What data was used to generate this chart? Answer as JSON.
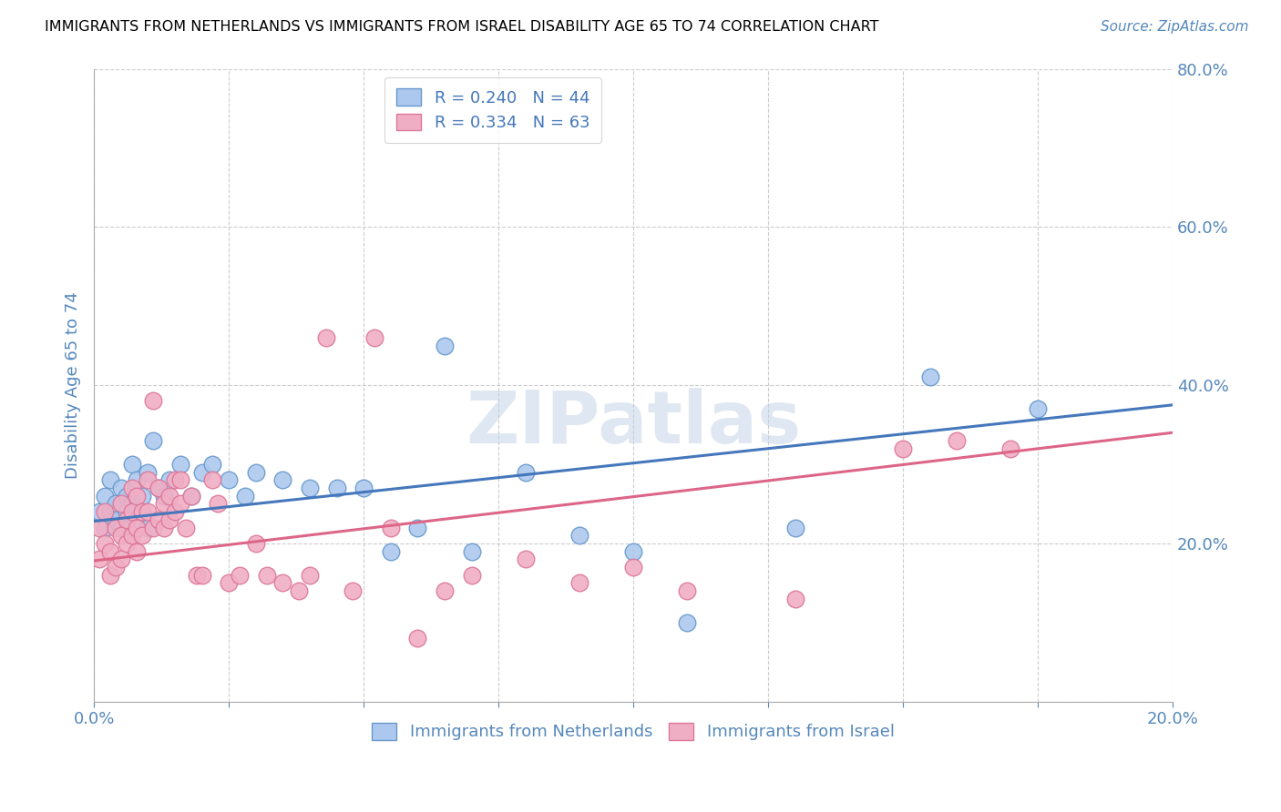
{
  "title": "IMMIGRANTS FROM NETHERLANDS VS IMMIGRANTS FROM ISRAEL DISABILITY AGE 65 TO 74 CORRELATION CHART",
  "source": "Source: ZipAtlas.com",
  "ylabel": "Disability Age 65 to 74",
  "xlim": [
    0.0,
    0.2
  ],
  "ylim": [
    0.0,
    0.8
  ],
  "xticks": [
    0.0,
    0.025,
    0.05,
    0.075,
    0.1,
    0.125,
    0.15,
    0.175,
    0.2
  ],
  "yticks": [
    0.0,
    0.2,
    0.4,
    0.6,
    0.8
  ],
  "xtick_labels": [
    "0.0%",
    "",
    "",
    "",
    "",
    "",
    "",
    "",
    "20.0%"
  ],
  "ytick_labels": [
    "",
    "20.0%",
    "40.0%",
    "60.0%",
    "80.0%"
  ],
  "netherlands_color": "#adc8ee",
  "israel_color": "#f0aec4",
  "netherlands_edge": "#6699cc",
  "israel_edge": "#dd7799",
  "trend_netherlands_color": "#4477bb",
  "trend_israel_color": "#dd6688",
  "legend_netherlands": "R = 0.240   N = 44",
  "legend_israel": "R = 0.334   N = 63",
  "watermark": "ZIPatlas",
  "netherlands_x": [
    0.001,
    0.002,
    0.002,
    0.003,
    0.003,
    0.004,
    0.004,
    0.005,
    0.005,
    0.006,
    0.006,
    0.007,
    0.007,
    0.008,
    0.008,
    0.009,
    0.01,
    0.01,
    0.011,
    0.012,
    0.013,
    0.014,
    0.016,
    0.018,
    0.02,
    0.022,
    0.025,
    0.028,
    0.03,
    0.035,
    0.04,
    0.045,
    0.05,
    0.055,
    0.06,
    0.065,
    0.07,
    0.08,
    0.09,
    0.1,
    0.11,
    0.13,
    0.155,
    0.175
  ],
  "netherlands_y": [
    0.24,
    0.26,
    0.22,
    0.28,
    0.24,
    0.25,
    0.23,
    0.27,
    0.22,
    0.26,
    0.24,
    0.3,
    0.25,
    0.28,
    0.23,
    0.26,
    0.29,
    0.22,
    0.33,
    0.27,
    0.26,
    0.28,
    0.3,
    0.26,
    0.29,
    0.3,
    0.28,
    0.26,
    0.29,
    0.28,
    0.27,
    0.27,
    0.27,
    0.19,
    0.22,
    0.45,
    0.19,
    0.29,
    0.21,
    0.19,
    0.1,
    0.22,
    0.41,
    0.37
  ],
  "israel_x": [
    0.001,
    0.001,
    0.002,
    0.002,
    0.003,
    0.003,
    0.004,
    0.004,
    0.005,
    0.005,
    0.005,
    0.006,
    0.006,
    0.007,
    0.007,
    0.007,
    0.008,
    0.008,
    0.008,
    0.009,
    0.009,
    0.01,
    0.01,
    0.011,
    0.011,
    0.012,
    0.012,
    0.013,
    0.013,
    0.014,
    0.014,
    0.015,
    0.015,
    0.016,
    0.016,
    0.017,
    0.018,
    0.019,
    0.02,
    0.022,
    0.023,
    0.025,
    0.027,
    0.03,
    0.032,
    0.035,
    0.038,
    0.04,
    0.043,
    0.048,
    0.052,
    0.055,
    0.06,
    0.065,
    0.07,
    0.08,
    0.09,
    0.1,
    0.11,
    0.13,
    0.15,
    0.16,
    0.17
  ],
  "israel_y": [
    0.22,
    0.18,
    0.24,
    0.2,
    0.19,
    0.16,
    0.22,
    0.17,
    0.25,
    0.21,
    0.18,
    0.23,
    0.2,
    0.27,
    0.24,
    0.21,
    0.26,
    0.22,
    0.19,
    0.24,
    0.21,
    0.28,
    0.24,
    0.38,
    0.22,
    0.27,
    0.23,
    0.25,
    0.22,
    0.26,
    0.23,
    0.28,
    0.24,
    0.28,
    0.25,
    0.22,
    0.26,
    0.16,
    0.16,
    0.28,
    0.25,
    0.15,
    0.16,
    0.2,
    0.16,
    0.15,
    0.14,
    0.16,
    0.46,
    0.14,
    0.46,
    0.22,
    0.08,
    0.14,
    0.16,
    0.18,
    0.15,
    0.17,
    0.14,
    0.13,
    0.32,
    0.33,
    0.32
  ],
  "nl_trend_x": [
    0.0,
    0.2
  ],
  "nl_trend_y": [
    0.228,
    0.375
  ],
  "il_trend_x": [
    0.0,
    0.2
  ],
  "il_trend_y": [
    0.178,
    0.34
  ]
}
